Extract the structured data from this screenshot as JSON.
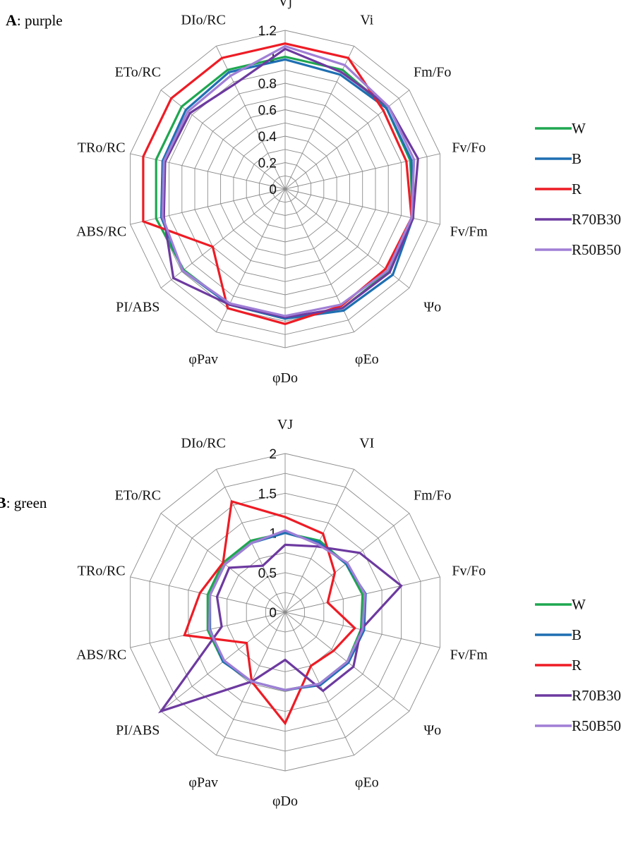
{
  "chart_data": [
    {
      "type": "radar",
      "panel_letter": "A",
      "panel_suffix": ": purple",
      "axes": [
        "Vj",
        "Vi",
        "Fm/Fo",
        "Fv/Fo",
        "Fv/Fm",
        "Ψo",
        "φEo",
        "φDo",
        "φPav",
        "PI/ABS",
        "ABS/RC",
        "TRo/RC",
        "ETo/RC",
        "DIo/RC"
      ],
      "rmax": 1.2,
      "ticks": [
        0,
        0.2,
        0.4,
        0.6,
        0.8,
        1,
        1.2
      ],
      "tick_labels": [
        "0",
        "0.2",
        "0.4",
        "0.6",
        "0.8",
        "1",
        "1.2"
      ],
      "grid": true,
      "legend_position": "right",
      "series": [
        {
          "name": "W",
          "color": "#1fa750",
          "values": [
            1.0,
            1.0,
            0.98,
            0.97,
            0.99,
            1.0,
            1.0,
            0.98,
            0.97,
            0.98,
            1.0,
            1.0,
            1.0,
            1.0
          ]
        },
        {
          "name": "B",
          "color": "#1f6fb2",
          "values": [
            0.98,
            0.96,
            0.98,
            0.98,
            0.99,
            1.04,
            1.02,
            0.98,
            0.97,
            0.99,
            0.96,
            0.95,
            0.96,
            0.98
          ]
        },
        {
          "name": "R",
          "color": "#ee1c25",
          "values": [
            1.1,
            1.1,
            0.95,
            0.94,
            0.98,
            0.97,
            0.98,
            1.02,
            1.0,
            0.7,
            1.1,
            1.1,
            1.1,
            1.1
          ]
        },
        {
          "name": "R70B30",
          "color": "#6d3aa0",
          "values": [
            1.06,
            0.98,
            1.0,
            1.03,
            0.99,
            1.01,
            1.0,
            0.97,
            0.97,
            1.08,
            0.94,
            0.93,
            0.92,
            0.88
          ]
        },
        {
          "name": "R50B50",
          "color": "#a07fd6",
          "values": [
            1.08,
            1.04,
            1.0,
            1.0,
            0.98,
            0.99,
            0.97,
            0.96,
            0.96,
            0.99,
            0.95,
            0.94,
            0.94,
            0.95
          ]
        }
      ]
    },
    {
      "type": "radar",
      "panel_letter": "B",
      "panel_suffix": ": green",
      "axes": [
        "VJ",
        "VI",
        "Fm/Fo",
        "Fv/Fo",
        "Fv/Fm",
        "Ψo",
        "φEo",
        "φDo",
        "φPav",
        "PI/ABS",
        "ABS/RC",
        "TRo/RC",
        "ETo/RC",
        "DIo/RC"
      ],
      "rmax": 2,
      "ticks": [
        0,
        0.5,
        1,
        1.5,
        2
      ],
      "tick_labels": [
        "0",
        "0.5",
        "1",
        "1.5",
        "2"
      ],
      "grid": true,
      "legend_position": "right",
      "series": [
        {
          "name": "W",
          "color": "#1fa750",
          "values": [
            1.0,
            1.0,
            0.98,
            1.0,
            0.98,
            1.0,
            1.0,
            0.98,
            0.97,
            1.0,
            1.0,
            1.0,
            1.0,
            1.0
          ]
        },
        {
          "name": "B",
          "color": "#1f6fb2",
          "values": [
            1.0,
            0.98,
            0.98,
            1.04,
            1.02,
            1.02,
            1.02,
            0.98,
            0.97,
            1.0,
            0.97,
            0.97,
            0.97,
            0.97
          ]
        },
        {
          "name": "R",
          "color": "#ee1c25",
          "values": [
            1.2,
            1.1,
            0.8,
            0.55,
            0.9,
            0.78,
            0.75,
            1.4,
            0.97,
            0.62,
            1.3,
            1.1,
            1.0,
            1.55
          ]
        },
        {
          "name": "R70B30",
          "color": "#6d3aa0",
          "values": [
            0.85,
            0.92,
            1.2,
            1.5,
            0.98,
            1.1,
            1.1,
            0.6,
            0.97,
            2.0,
            0.82,
            0.88,
            0.9,
            0.65
          ]
        },
        {
          "name": "R50B50",
          "color": "#a07fd6",
          "values": [
            1.03,
            0.95,
            1.0,
            1.03,
            1.0,
            1.0,
            1.0,
            0.98,
            0.97,
            0.98,
            0.98,
            0.97,
            0.97,
            0.97
          ]
        }
      ]
    }
  ]
}
